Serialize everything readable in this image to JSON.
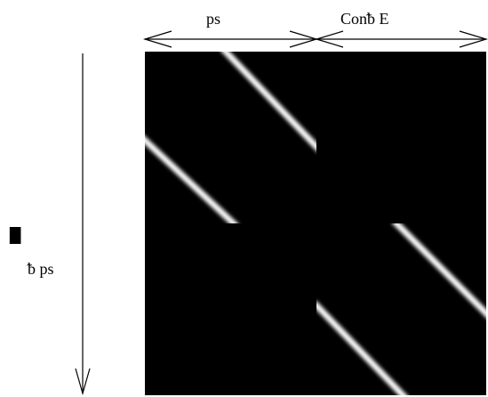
{
  "labels": {
    "top_left": "ps",
    "top_right": "Conᵬ  E",
    "left_mark": "█",
    "left_small": "ᵬ ps"
  },
  "colors": {
    "background": "#ffffff",
    "matrix_background": "#000000",
    "stripe": "#ffffff",
    "line": "#000000"
  },
  "matrix": {
    "blocks": [
      {
        "name": "top-left-block",
        "row": 0,
        "col": 0
      },
      {
        "name": "bottom-right-block",
        "row": 1,
        "col": 1
      }
    ]
  }
}
